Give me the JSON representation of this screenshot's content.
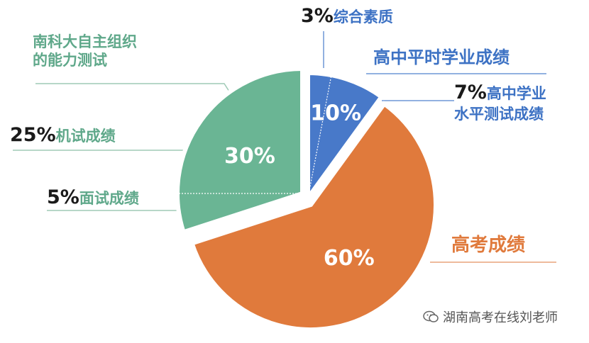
{
  "chart_data": {
    "type": "pie",
    "slices": [
      {
        "key": "gaokao",
        "label": "高考成绩",
        "value": 60,
        "color": "#e07a3c",
        "display": "60%"
      },
      {
        "key": "ability",
        "label": "南科大自主组织的能力测试",
        "value": 30,
        "color": "#6ab594",
        "display": "30%",
        "sub": [
          {
            "label": "面试成绩",
            "value": 5
          },
          {
            "label": "机试成绩",
            "value": 25
          }
        ]
      },
      {
        "key": "school",
        "label": "高中平时学业成绩",
        "value": 10,
        "color": "#4879c9",
        "display": "10%",
        "sub": [
          {
            "label": "综合素质",
            "value": 3
          },
          {
            "label": "高中学业水平测试成绩",
            "value": 7
          }
        ]
      }
    ]
  },
  "labels": {
    "ability_line1": "南科大自主组织",
    "ability_line2": "的能力测试",
    "jishi_pct": "25%",
    "jishi_text": "机试成绩",
    "mianshi_pct": "5%",
    "mianshi_text": "面试成绩",
    "zonghe_pct": "3%",
    "zonghe_text": "综合素质",
    "school_title": "高中平时学业成绩",
    "xueye_pct": "7%",
    "xueye_line1": "高中学业",
    "xueye_line2": "水平测试成绩",
    "gaokao": "高考成绩"
  },
  "watermark": "湖南高考在线刘老师"
}
